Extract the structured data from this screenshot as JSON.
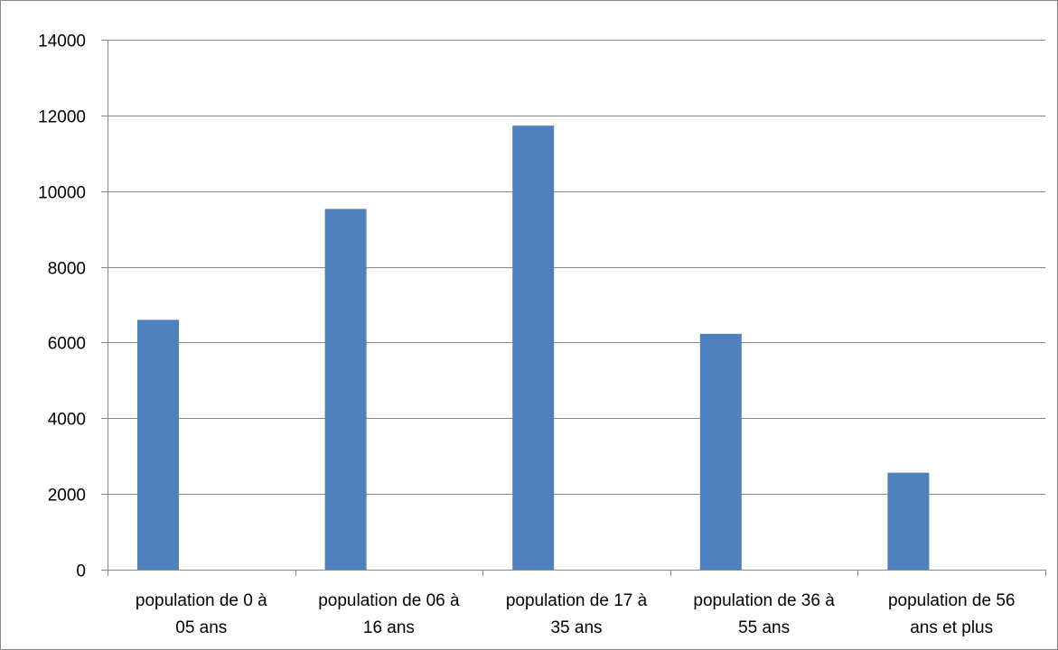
{
  "chart_data": {
    "type": "bar",
    "title": "",
    "xlabel": "",
    "ylabel": "",
    "categories": [
      [
        "population de 0 à",
        "05 ans"
      ],
      [
        "population de 06 à",
        "16 ans"
      ],
      [
        "population de 17 à",
        "35 ans"
      ],
      [
        "population de 36 à",
        "55 ans"
      ],
      [
        "population de 56",
        "ans et plus"
      ]
    ],
    "values": [
      6600,
      9530,
      11730,
      6230,
      2560
    ],
    "ylim": [
      0,
      14000
    ],
    "yticks": [
      0,
      2000,
      4000,
      6000,
      8000,
      10000,
      12000,
      14000
    ],
    "grid": true,
    "legend": "none",
    "bar_color": "#4F81BD",
    "grid_color": "#868686"
  }
}
